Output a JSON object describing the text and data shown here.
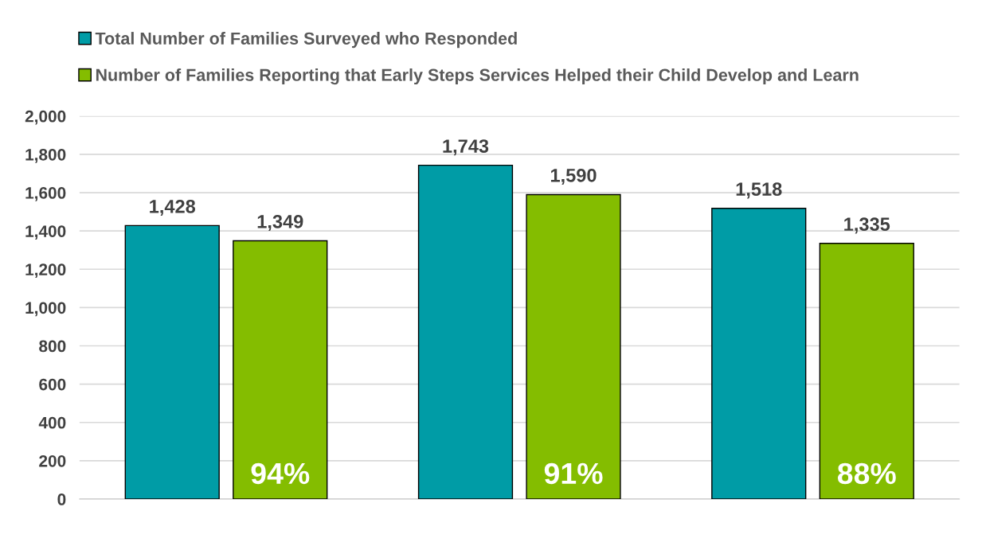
{
  "chart_data": {
    "type": "bar",
    "categories": [
      null,
      null,
      null
    ],
    "series": [
      {
        "name": "Total Number of Families Surveyed who Responded",
        "color": "#009ca6",
        "values": [
          1428,
          1743,
          1518
        ],
        "value_labels": [
          "1,428",
          "1,743",
          "1,518"
        ]
      },
      {
        "name": "Number of Families Reporting that Early Steps Services Helped their Child Develop and Learn",
        "color": "#84bd00",
        "values": [
          1349,
          1590,
          1335
        ],
        "value_labels": [
          "1,349",
          "1,590",
          "1,335"
        ]
      }
    ],
    "ylim": [
      0,
      2000
    ],
    "yticks": [
      0,
      200,
      400,
      600,
      800,
      {
        "value": 1000,
        "label": "1,000"
      },
      {
        "value": 1200,
        "label": "1,200"
      },
      {
        "value": 1400,
        "label": "1,400"
      },
      {
        "value": 1600,
        "label": "1,600"
      },
      {
        "value": 1800,
        "label": "1,800"
      },
      {
        "value": 2000,
        "label": "2,000"
      }
    ],
    "grid": "y",
    "legend": "top left",
    "annotations": [
      "94%",
      "91%",
      "88%"
    ]
  }
}
